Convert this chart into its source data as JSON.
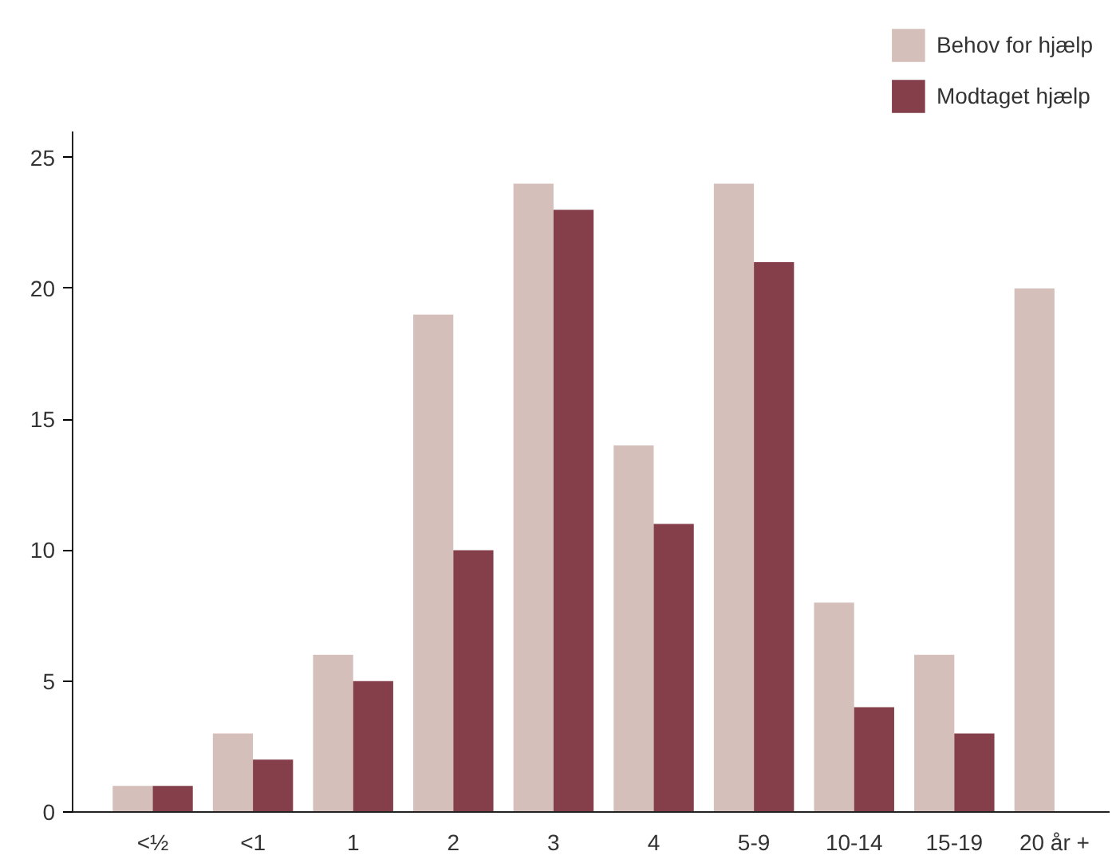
{
  "chart_data": {
    "type": "bar",
    "categories": [
      "<½",
      "<1",
      "1",
      "2",
      "3",
      "4",
      "5-9",
      "10-14",
      "15-19",
      "20 år +"
    ],
    "series": [
      {
        "name": "Behov for hjælp",
        "color": "#d5bfba",
        "values": [
          1,
          3,
          6,
          19,
          24,
          14,
          24,
          8,
          6,
          20
        ]
      },
      {
        "name": "Modtaget hjælp",
        "color": "#843f4b",
        "values": [
          1,
          2,
          5,
          10,
          23,
          11,
          21,
          4,
          3,
          null
        ]
      }
    ],
    "ylim": [
      0,
      26
    ],
    "yticks": [
      0,
      5,
      10,
      15,
      20,
      25
    ],
    "grid": false,
    "legend": "top right"
  }
}
